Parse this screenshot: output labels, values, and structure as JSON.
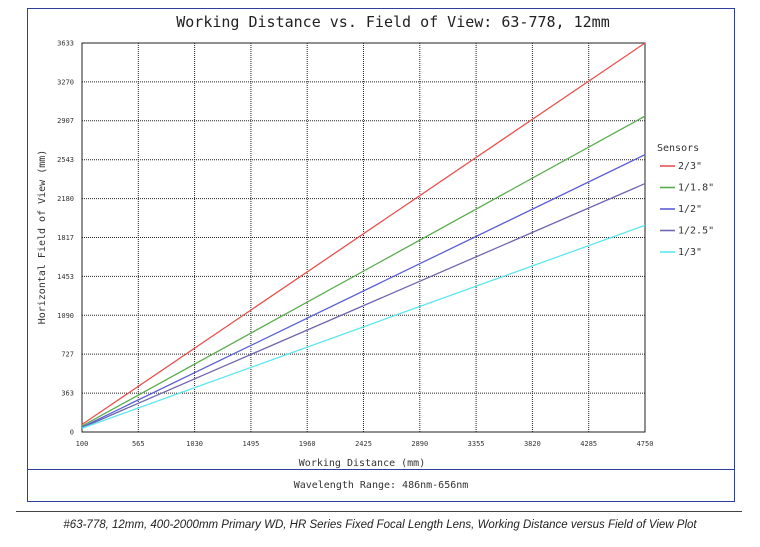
{
  "chart_data": {
    "type": "line",
    "title": "Working Distance vs. Field of View: 63-778, 12mm",
    "xlabel": "Working Distance (mm)",
    "ylabel": "Horizontal Field of View (mm)",
    "xlim": [
      100,
      4750
    ],
    "ylim": [
      0,
      3633
    ],
    "x_ticks": [
      "100",
      "565",
      "1030",
      "1495",
      "1960",
      "2425",
      "2890",
      "3355",
      "3820",
      "4285",
      "4750"
    ],
    "y_ticks": [
      "0",
      "363",
      "727",
      "1090",
      "1453",
      "1817",
      "2180",
      "2543",
      "2907",
      "3270",
      "3633"
    ],
    "grid": true,
    "legend_title": "Sensors",
    "legend_position": "right",
    "series": [
      {
        "name": "2/3\"",
        "color": "#e8524f",
        "x": [
          100,
          4750
        ],
        "y": [
          70,
          3633
        ]
      },
      {
        "name": "1/1.8\"",
        "color": "#5aad4e",
        "x": [
          100,
          4750
        ],
        "y": [
          55,
          2950
        ]
      },
      {
        "name": "1/2\"",
        "color": "#5b5fd6",
        "x": [
          100,
          4750
        ],
        "y": [
          45,
          2590
        ]
      },
      {
        "name": "1/2.5\"",
        "color": "#7068b0",
        "x": [
          100,
          4750
        ],
        "y": [
          40,
          2320
        ]
      },
      {
        "name": "1/3\"",
        "color": "#5de6ee",
        "x": [
          100,
          4750
        ],
        "y": [
          35,
          1930
        ]
      }
    ]
  },
  "footer": {
    "wavelength": "Wavelength Range: 486nm-656nm"
  },
  "caption": "#63-778, 12mm, 400-2000mm Primary WD, HR Series Fixed Focal Length Lens, Working Distance versus Field of View Plot"
}
